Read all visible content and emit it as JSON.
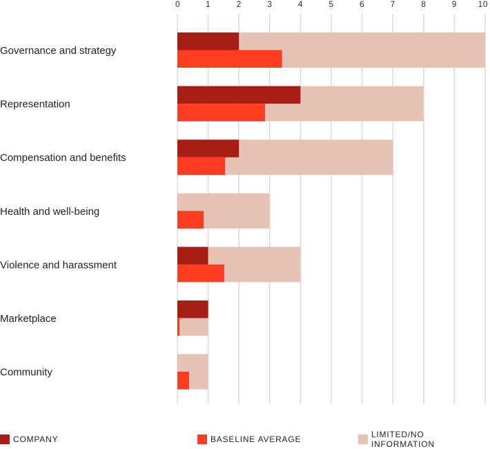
{
  "chart_data": {
    "type": "bar",
    "orientation": "horizontal",
    "title": "",
    "xlabel": "",
    "ylabel": "",
    "xlim": [
      0,
      10
    ],
    "xticks": [
      0,
      1,
      2,
      3,
      4,
      5,
      6,
      7,
      8,
      9,
      10
    ],
    "grid": true,
    "categories": [
      "Governance and strategy",
      "Representation",
      "Compensation and benefits",
      "Health and well-being",
      "Violence and harassment",
      "Marketplace",
      "Community"
    ],
    "series": [
      {
        "name": "Limited/no information",
        "key": "limited",
        "color": "#e6c3b5",
        "values": [
          10,
          8,
          7,
          3,
          4,
          1,
          1
        ]
      },
      {
        "name": "Company",
        "key": "company",
        "color": "#a81e14",
        "values": [
          2,
          4,
          2,
          0,
          1,
          1,
          0
        ]
      },
      {
        "name": "Baseline average",
        "key": "baseline",
        "color": "#ff3b22",
        "values": [
          3.4,
          2.85,
          1.55,
          0.85,
          1.52,
          0.07,
          0.38
        ]
      }
    ]
  },
  "legend": {
    "company": "COMPANY",
    "baseline": "BASELINE AVERAGE",
    "limited": "LIMITED/NO INFORMATION"
  },
  "colors": {
    "company": "#a81e14",
    "baseline": "#ff3b22",
    "limited": "#e6c3b5",
    "grid": "#d9d9d9"
  }
}
